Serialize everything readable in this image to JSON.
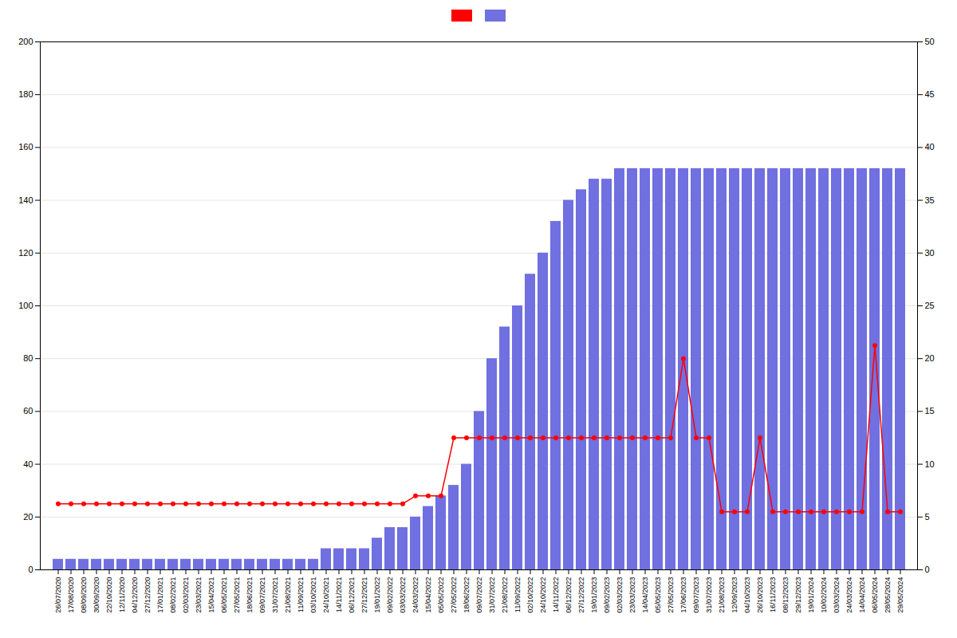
{
  "chart_data": {
    "type": "bar",
    "categories": [
      "26/07/2020",
      "17/08/2020",
      "08/09/2020",
      "30/09/2020",
      "22/10/2020",
      "12/11/2020",
      "04/12/2020",
      "27/12/2020",
      "17/01/2021",
      "08/02/2021",
      "02/03/2021",
      "23/03/2021",
      "15/04/2021",
      "06/05/2021",
      "27/05/2021",
      "18/06/2021",
      "09/07/2021",
      "31/07/2021",
      "21/08/2021",
      "11/09/2021",
      "03/10/2021",
      "24/10/2021",
      "14/11/2021",
      "06/12/2021",
      "27/12/2021",
      "19/01/2022",
      "09/02/2022",
      "03/03/2022",
      "24/03/2022",
      "15/04/2022",
      "05/05/2022",
      "27/05/2022",
      "18/06/2022",
      "09/07/2022",
      "31/07/2022",
      "21/08/2022",
      "11/09/2022",
      "02/10/2022",
      "24/10/2022",
      "14/11/2022",
      "06/12/2022",
      "27/12/2022",
      "19/01/2023",
      "09/02/2023",
      "02/03/2023",
      "23/03/2023",
      "14/04/2023",
      "05/05/2023",
      "27/05/2023",
      "17/06/2023",
      "09/07/2023",
      "31/07/2023",
      "21/08/2023",
      "12/09/2023",
      "04/10/2023",
      "26/10/2023",
      "16/11/2023",
      "08/12/2023",
      "29/12/2023",
      "19/01/2024",
      "10/02/2024",
      "03/03/2024",
      "24/03/2024",
      "14/04/2024",
      "06/05/2024",
      "28/05/2024",
      "29/05/2024"
    ],
    "series": [
      {
        "type": "line",
        "color": "#ff0000",
        "marker": "circle",
        "values": [
          25,
          25,
          25,
          25,
          25,
          25,
          25,
          25,
          25,
          25,
          25,
          25,
          25,
          25,
          25,
          25,
          25,
          25,
          25,
          25,
          25,
          25,
          25,
          25,
          25,
          25,
          25,
          25,
          28,
          28,
          28,
          50,
          50,
          50,
          50,
          50,
          50,
          50,
          50,
          50,
          50,
          50,
          50,
          50,
          50,
          50,
          50,
          50,
          50,
          80,
          50,
          50,
          22,
          22,
          22,
          50,
          22,
          22,
          22,
          22,
          22,
          22,
          22,
          22,
          85,
          22,
          22
        ]
      },
      {
        "type": "bar",
        "axis": "y2",
        "color": "#7070e0",
        "values": [
          1,
          1,
          1,
          1,
          1,
          1,
          1,
          1,
          1,
          1,
          1,
          1,
          1,
          1,
          1,
          1,
          1,
          1,
          1,
          1,
          1,
          2,
          2,
          2,
          2,
          3,
          4,
          4,
          5,
          6,
          7,
          8,
          10,
          15,
          20,
          23,
          25,
          28,
          30,
          33,
          35,
          36,
          37,
          37,
          38,
          38,
          38,
          38,
          38,
          38,
          38,
          38,
          38,
          38,
          38,
          38,
          38,
          38,
          38,
          38,
          38,
          38,
          38,
          38,
          38,
          38,
          38
        ]
      }
    ],
    "ylim": [
      0,
      200
    ],
    "yticks": [
      0,
      20,
      40,
      60,
      80,
      100,
      120,
      140,
      160,
      180,
      200
    ],
    "y2lim": [
      0,
      50
    ],
    "y2ticks": [
      0,
      5,
      10,
      15,
      20,
      25,
      30,
      35,
      40,
      45,
      50
    ],
    "grid": true,
    "legend": "top"
  }
}
